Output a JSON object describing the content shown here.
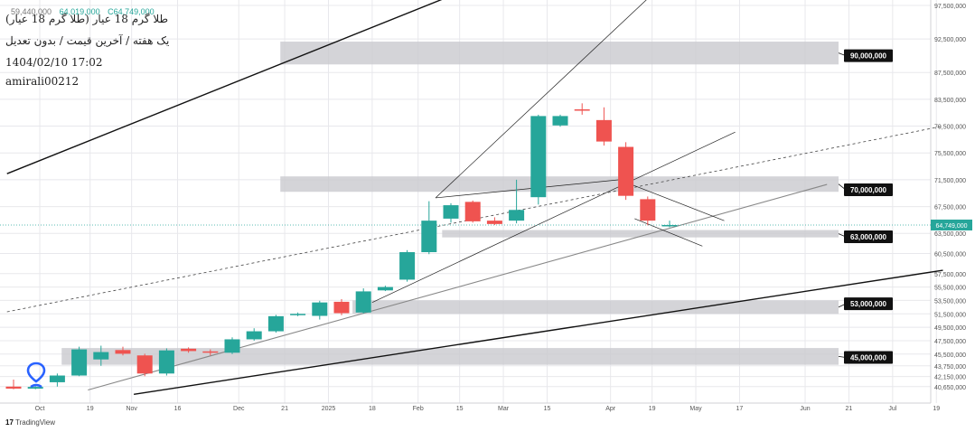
{
  "header": {
    "ohlc": [
      "59,440,000",
      "64,019,000",
      "C64,749,000"
    ],
    "title_fa": "طلا گرم 18 عیار (طلا گرم 18 عیار)",
    "subtitle_fa": "یک هفته / آخرین قیمت / بدون تعدیل",
    "datetime": "1404/02/10 17:02",
    "author": "amirali00212"
  },
  "footer": {
    "logo_text": "TradingView"
  },
  "colors": {
    "up": "#26a69a",
    "down": "#ef5350",
    "zone": "#c9c9ce",
    "label_bg": "#111111",
    "grid": "#e8e8ec",
    "axis_text": "#555555"
  },
  "icons": {
    "pin": "location-pin-icon",
    "logo": "tradingview-logo-icon"
  },
  "chart_data": {
    "type": "candlestick",
    "y_scale": "linear",
    "ylim": [
      39000000,
      97500000
    ],
    "y_ticks": [
      "97,500,000",
      "92,500,000",
      "87,500,000",
      "83,500,000",
      "79,500,000",
      "75,500,000",
      "71,500,000",
      "67,500,000",
      "63,500,000",
      "60,500,000",
      "57,500,000",
      "55,500,000",
      "53,500,000",
      "51,500,000",
      "49,500,000",
      "47,500,000",
      "45,500,000",
      "43,750,000",
      "42,150,000",
      "40,650,000"
    ],
    "y_tick_values": [
      97500000,
      92500000,
      87500000,
      83500000,
      79500000,
      75500000,
      71500000,
      67500000,
      63500000,
      60500000,
      57500000,
      55500000,
      53500000,
      51500000,
      49500000,
      47500000,
      45500000,
      43750000,
      42150000,
      40650000
    ],
    "x_ticks": [
      "Oct",
      "19",
      "Nov",
      "16",
      "Dec",
      "21",
      "2025",
      "18",
      "Feb",
      "15",
      "Mar",
      "15",
      "Apr",
      "19",
      "May",
      "17",
      "Jun",
      "21",
      "Jul",
      "19"
    ],
    "x_tick_index": [
      1.2,
      3.5,
      5.4,
      7.5,
      10.3,
      12.4,
      14.4,
      16.4,
      18.5,
      20.4,
      22.4,
      24.4,
      27.3,
      29.2,
      31.2,
      33.2,
      36.2,
      38.2,
      40.2,
      42.2
    ],
    "candles": [
      {
        "i": 0,
        "o": 40650000,
        "h": 41700000,
        "l": 40250000,
        "c": 40350000
      },
      {
        "i": 1,
        "o": 40350000,
        "h": 40700000,
        "l": 40250000,
        "c": 40600000
      },
      {
        "i": 2,
        "o": 41300000,
        "h": 42600000,
        "l": 40650000,
        "c": 42300000
      },
      {
        "i": 3,
        "o": 42300000,
        "h": 46600000,
        "l": 42200000,
        "c": 46200000
      },
      {
        "i": 4,
        "o": 44700000,
        "h": 46750000,
        "l": 43750000,
        "c": 45800000
      },
      {
        "i": 5,
        "o": 46100000,
        "h": 46600000,
        "l": 45300000,
        "c": 45550000
      },
      {
        "i": 6,
        "o": 45300000,
        "h": 45550000,
        "l": 42200000,
        "c": 42600000
      },
      {
        "i": 7,
        "o": 42600000,
        "h": 46350000,
        "l": 42300000,
        "c": 46050000
      },
      {
        "i": 8,
        "o": 46300000,
        "h": 46500000,
        "l": 45700000,
        "c": 45950000
      },
      {
        "i": 9,
        "o": 45900000,
        "h": 46200000,
        "l": 45300000,
        "c": 45700000
      },
      {
        "i": 10,
        "o": 45700000,
        "h": 48000000,
        "l": 45500000,
        "c": 47700000
      },
      {
        "i": 11,
        "o": 47700000,
        "h": 49350000,
        "l": 47500000,
        "c": 48900000
      },
      {
        "i": 12,
        "o": 48900000,
        "h": 51350000,
        "l": 48700000,
        "c": 51150000
      },
      {
        "i": 13,
        "o": 51300000,
        "h": 51700000,
        "l": 51150000,
        "c": 51500000
      },
      {
        "i": 14,
        "o": 51200000,
        "h": 53450000,
        "l": 50650000,
        "c": 53200000
      },
      {
        "i": 15,
        "o": 53300000,
        "h": 53700000,
        "l": 51300000,
        "c": 51600000
      },
      {
        "i": 16,
        "o": 51700000,
        "h": 55300000,
        "l": 51550000,
        "c": 54850000
      },
      {
        "i": 17,
        "o": 55000000,
        "h": 55700000,
        "l": 54900000,
        "c": 55500000
      },
      {
        "i": 18,
        "o": 56600000,
        "h": 61000000,
        "l": 56300000,
        "c": 60700000
      },
      {
        "i": 19,
        "o": 60700000,
        "h": 68300000,
        "l": 60400000,
        "c": 65400000
      },
      {
        "i": 20,
        "o": 65700000,
        "h": 68000000,
        "l": 65100000,
        "c": 67700000
      },
      {
        "i": 21,
        "o": 68200000,
        "h": 68400000,
        "l": 65100000,
        "c": 65300000
      },
      {
        "i": 22,
        "o": 65400000,
        "h": 65900000,
        "l": 64750000,
        "c": 64900000
      },
      {
        "i": 23,
        "o": 65400000,
        "h": 71500000,
        "l": 65000000,
        "c": 67000000
      },
      {
        "i": 24,
        "o": 68900000,
        "h": 81200000,
        "l": 67800000,
        "c": 81000000
      },
      {
        "i": 25,
        "o": 79600000,
        "h": 81200000,
        "l": 79400000,
        "c": 81000000
      },
      {
        "i": 26,
        "o": 82000000,
        "h": 82900000,
        "l": 81200000,
        "c": 81800000
      },
      {
        "i": 27,
        "o": 80400000,
        "h": 82300000,
        "l": 76600000,
        "c": 77200000
      },
      {
        "i": 28,
        "o": 76400000,
        "h": 77100000,
        "l": 68500000,
        "c": 69100000
      },
      {
        "i": 29,
        "o": 68600000,
        "h": 69000000,
        "l": 64700000,
        "c": 65400000
      },
      {
        "i": 30,
        "o": 64700000,
        "h": 65400000,
        "l": 64400000,
        "c": 64749000
      }
    ],
    "zones": [
      {
        "label": "90,000,000",
        "price": 90000000,
        "top": 92100000,
        "bottom": 88700000,
        "i_start": 12.2
      },
      {
        "label": "70,000,000",
        "price": 70000000,
        "top": 72000000,
        "bottom": 69700000,
        "i_start": 12.2
      },
      {
        "label": "63,000,000",
        "price": 63000000,
        "top": 64000000,
        "bottom": 62900000,
        "i_start": 19.6
      },
      {
        "label": "53,000,000",
        "price": 53000000,
        "top": 53500000,
        "bottom": 51500000,
        "i_start": 15.5
      },
      {
        "label": "45,000,000",
        "price": 45000000,
        "top": 46400000,
        "bottom": 43900000,
        "i_start": 2.2
      }
    ],
    "last_price": {
      "label": "64,749,000",
      "value": 64749000
    },
    "lines": [
      {
        "p1": [
          -0.3,
          72400000
        ],
        "p2": [
          27.7,
          109000000
        ],
        "style": "solid-heavy"
      },
      {
        "p1": [
          5.5,
          39500000
        ],
        "p2": [
          42.5,
          58000000
        ],
        "style": "solid-heavy"
      },
      {
        "p1": [
          3.4,
          40150000
        ],
        "p2": [
          37.2,
          70800000
        ],
        "style": "solid-gray"
      },
      {
        "p1": [
          -0.3,
          51800000
        ],
        "p2": [
          42.5,
          79500000
        ],
        "style": "dashed"
      },
      {
        "p1": [
          19.3,
          68800000
        ],
        "p2": [
          30.3,
          102500000
        ],
        "style": "thin"
      },
      {
        "p1": [
          16.4,
          53200000
        ],
        "p2": [
          33.0,
          78600000
        ],
        "style": "thin"
      },
      {
        "p1": [
          19.3,
          68800000
        ],
        "p2": [
          27.7,
          71500000
        ],
        "style": "thin"
      },
      {
        "p1": [
          27.7,
          71500000
        ],
        "p2": [
          32.5,
          65400000
        ],
        "style": "thin"
      },
      {
        "p1": [
          28.4,
          65700000
        ],
        "p2": [
          31.5,
          61600000
        ],
        "style": "thin"
      }
    ]
  }
}
